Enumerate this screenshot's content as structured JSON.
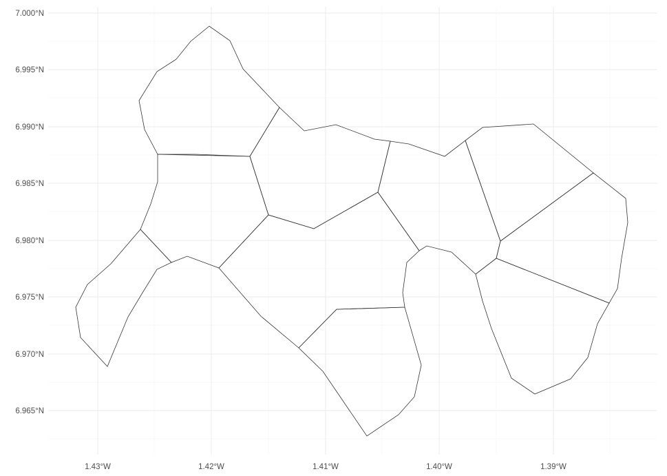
{
  "map": {
    "y_axis": {
      "tick_labels": [
        "7.000°N",
        "6.995°N",
        "6.990°N",
        "6.985°N",
        "6.980°N",
        "6.975°N",
        "6.970°N",
        "6.965°N"
      ],
      "tick_values": [
        7.0,
        6.995,
        6.99,
        6.985,
        6.98,
        6.975,
        6.97,
        6.965
      ]
    },
    "x_axis": {
      "tick_labels": [
        "1.43°W",
        "1.42°W",
        "1.41°W",
        "1.40°W",
        "1.39°W"
      ],
      "tick_values": [
        -1.43,
        -1.42,
        -1.41,
        -1.4,
        -1.39
      ]
    },
    "grid": true,
    "colors": {
      "outline": "#333333",
      "grid": "#ebebeb",
      "label": "#4d4d4d",
      "background": "#ffffff"
    }
  }
}
